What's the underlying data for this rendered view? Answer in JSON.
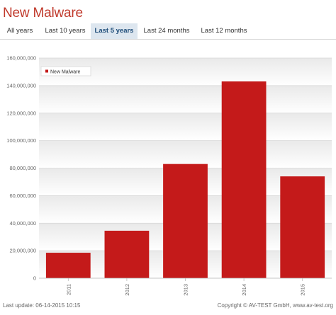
{
  "header": {
    "title": "New Malware"
  },
  "tabs": [
    {
      "label": "All years",
      "active": false
    },
    {
      "label": "Last 10 years",
      "active": false
    },
    {
      "label": "Last 5 years",
      "active": true
    },
    {
      "label": "Last 24 months",
      "active": false
    },
    {
      "label": "Last 12 months",
      "active": false
    }
  ],
  "colors": {
    "bar": "#c41a1a",
    "title": "#c0392b",
    "active_tab_bg": "#dde6ef"
  },
  "chart_data": {
    "type": "bar",
    "title": "",
    "xlabel": "",
    "ylabel": "",
    "categories": [
      "2011",
      "2012",
      "2013",
      "2014",
      "2015"
    ],
    "series": [
      {
        "name": "New Malware",
        "values": [
          18500000,
          34500000,
          83000000,
          143000000,
          74000000
        ]
      }
    ],
    "ylim": [
      0,
      160000000
    ],
    "yticks": [
      0,
      20000000,
      40000000,
      60000000,
      80000000,
      100000000,
      120000000,
      140000000,
      160000000
    ],
    "ytick_labels": [
      "0",
      "20,000,000",
      "40,000,000",
      "60,000,000",
      "80,000,000",
      "100,000,000",
      "120,000,000",
      "140,000,000",
      "160,000,000"
    ],
    "legend": "top-left",
    "grid": true
  },
  "footer": {
    "last_update": "Last update: 06-14-2015 10:15",
    "copyright": "Copyright © AV-TEST GmbH, www.av-test.org"
  }
}
